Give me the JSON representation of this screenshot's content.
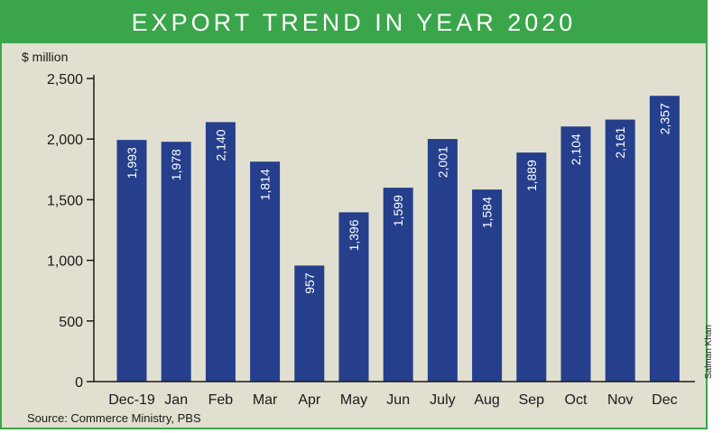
{
  "chart_data": {
    "type": "bar",
    "title": "EXPORT TREND IN YEAR 2020",
    "ylabel": "$ million",
    "xlabel": "",
    "categories": [
      "Dec-19",
      "Jan",
      "Feb",
      "Mar",
      "Apr",
      "May",
      "Jun",
      "July",
      "Aug",
      "Sep",
      "Oct",
      "Nov",
      "Dec"
    ],
    "values": [
      1993,
      1978,
      2140,
      1814,
      957,
      1396,
      1599,
      2001,
      1584,
      1889,
      2104,
      2161,
      2357
    ],
    "value_labels": [
      "1,993",
      "1,978",
      "2,140",
      "1,814",
      "957",
      "1,396",
      "1,599",
      "2,001",
      "1,584",
      "1,889",
      "2,104",
      "2,161",
      "2,357"
    ],
    "yticks": [
      0,
      500,
      1000,
      1500,
      2000,
      2500
    ],
    "ytick_labels": [
      "0",
      "500",
      "1,000",
      "1,500",
      "2,000",
      "2,500"
    ],
    "ylim": [
      0,
      2500
    ],
    "grid": false,
    "legend": "none",
    "bar_color": "#253f8c",
    "title_bar_color": "#3aa54a",
    "background_color": "#e1dfcf"
  },
  "source": "Source: Commerce Ministry, PBS",
  "credit": "Salman Khan"
}
